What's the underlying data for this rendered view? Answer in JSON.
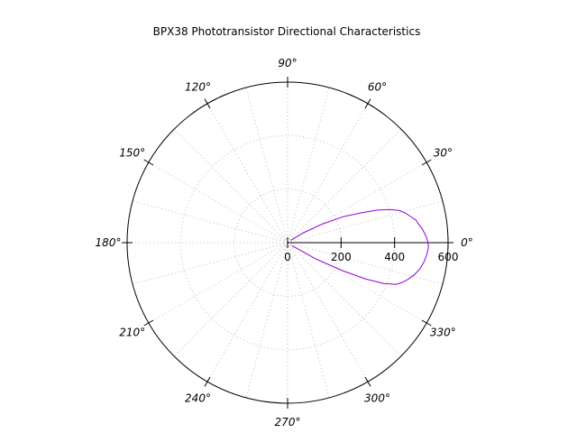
{
  "chart_data": {
    "type": "polar",
    "title": "BPX38 Phototransistor Directional Characteristics",
    "r_range": [
      0,
      600
    ],
    "r_ticks": [
      0,
      200,
      400,
      600
    ],
    "r_tick_labels": [
      "0",
      "200",
      "400",
      "600"
    ],
    "angle_ticks": [
      0,
      30,
      60,
      90,
      120,
      150,
      180,
      210,
      240,
      270,
      300,
      330
    ],
    "angle_labels": [
      "0°",
      "30°",
      "60°",
      "90°",
      "120°",
      "150°",
      "180°",
      "210°",
      "240°",
      "270°",
      "300°",
      "330°"
    ],
    "grid": true,
    "series": [
      {
        "color": "#9400d3",
        "points": [
          {
            "theta": -34,
            "r": 20
          },
          {
            "theta": -30,
            "r": 120
          },
          {
            "theta": -27,
            "r": 230
          },
          {
            "theta": -25,
            "r": 320
          },
          {
            "theta": -23,
            "r": 390
          },
          {
            "theta": -21,
            "r": 435
          },
          {
            "theta": -19,
            "r": 455
          },
          {
            "theta": -17,
            "r": 470
          },
          {
            "theta": -14,
            "r": 490
          },
          {
            "theta": -11,
            "r": 505
          },
          {
            "theta": -8,
            "r": 515
          },
          {
            "theta": -5,
            "r": 522
          },
          {
            "theta": -2,
            "r": 527
          },
          {
            "theta": 0,
            "r": 525
          },
          {
            "theta": 2,
            "r": 520
          },
          {
            "theta": 4,
            "r": 513
          },
          {
            "theta": 6,
            "r": 505
          },
          {
            "theta": 8,
            "r": 495
          },
          {
            "theta": 10,
            "r": 487
          },
          {
            "theta": 12,
            "r": 470
          },
          {
            "theta": 14,
            "r": 455
          },
          {
            "theta": 16,
            "r": 435
          },
          {
            "theta": 18,
            "r": 400
          },
          {
            "theta": 20,
            "r": 355
          },
          {
            "theta": 22,
            "r": 300
          },
          {
            "theta": 25,
            "r": 230
          },
          {
            "theta": 28,
            "r": 150
          },
          {
            "theta": 32,
            "r": 70
          },
          {
            "theta": 36,
            "r": 15
          }
        ]
      }
    ]
  }
}
